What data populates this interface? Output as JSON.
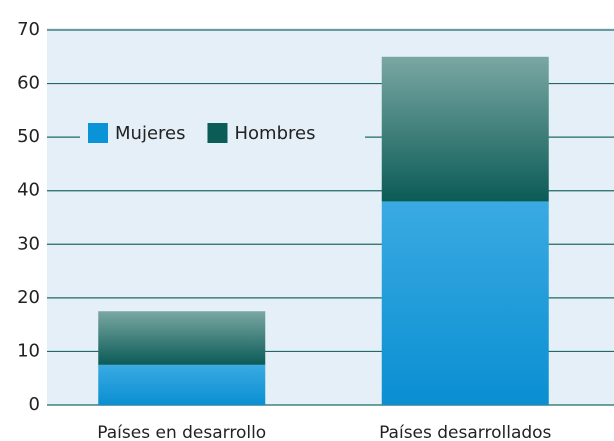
{
  "chart_data": {
    "type": "stacked_bar",
    "categories": [
      "Países en desarrollo",
      "Países desarrollados"
    ],
    "series": [
      {
        "name": "Mujeres",
        "color": "#0a93d6",
        "values": [
          7.5,
          38
        ]
      },
      {
        "name": "Hombres",
        "color": "#0b5b57",
        "values": [
          10,
          27
        ]
      }
    ],
    "ylim": [
      0,
      70
    ],
    "yticks": [
      0,
      10,
      20,
      30,
      40,
      50,
      60,
      70
    ],
    "grid": true,
    "legend": "upper left"
  }
}
